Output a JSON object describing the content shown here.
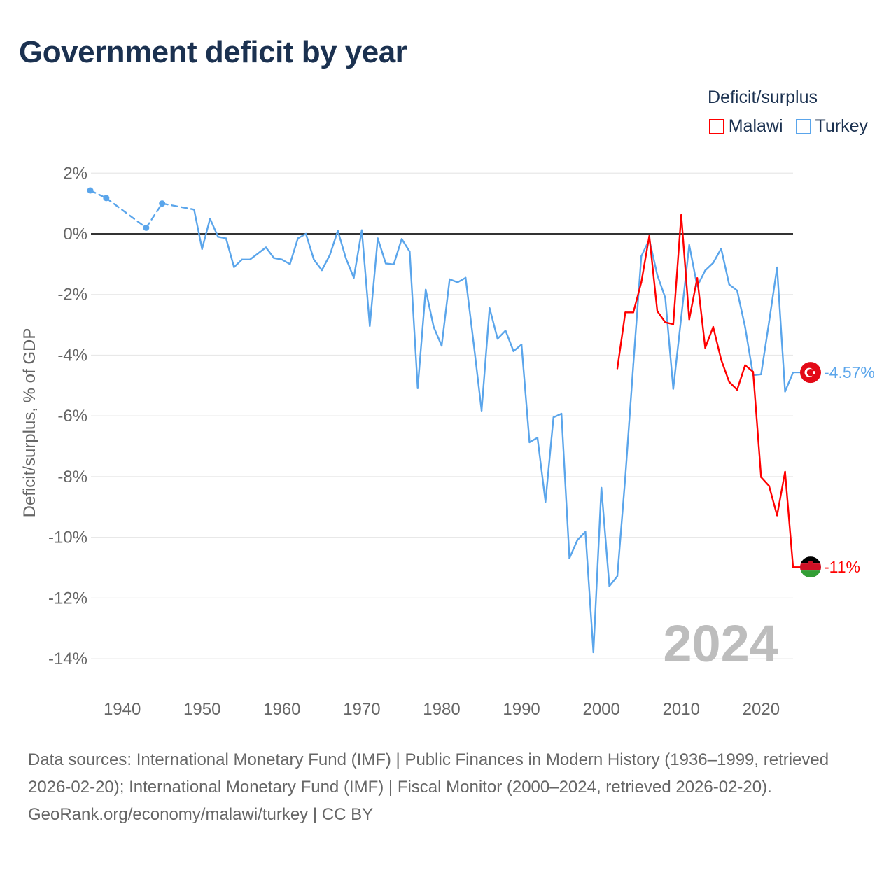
{
  "title": "Government deficit by year",
  "legend": {
    "title": "Deficit/surplus",
    "items": [
      {
        "label": "Malawi",
        "color": "#ff0000"
      },
      {
        "label": "Turkey",
        "color": "#5aa5eb"
      }
    ]
  },
  "footer": {
    "sources": "Data sources: International Monetary Fund (IMF) | Public Finances in Modern History (1936–1999, retrieved 2026-02-20); International Monetary Fund (IMF) | Fiscal Monitor (2000–2024, retrieved 2026-02-20).",
    "credit": "GeoRank.org/economy/malawi/turkey | CC BY"
  },
  "chart_data": {
    "type": "line",
    "title": "Government deficit by year",
    "xlabel": "",
    "ylabel": "Deficit/surplus, % of GDP",
    "xlim": [
      1936,
      2024
    ],
    "ylim": [
      -14,
      2
    ],
    "x_ticks": [
      1940,
      1950,
      1960,
      1970,
      1980,
      1990,
      2000,
      2010,
      2020
    ],
    "x_tick_labels": [
      "1940",
      "1950",
      "1960",
      "1970",
      "1980",
      "1990",
      "2000",
      "2010",
      "2020"
    ],
    "y_ticks": [
      2,
      0,
      -2,
      -4,
      -6,
      -8,
      -10,
      -12,
      -14
    ],
    "y_tick_labels": [
      "2%",
      "0%",
      "-2%",
      "-4%",
      "-6%",
      "-8%",
      "-10%",
      "-12%",
      "-14%"
    ],
    "grid": true,
    "legend_position": "top-right",
    "watermark_year": "2024",
    "series": [
      {
        "name": "Turkey",
        "color": "#5aa5eb",
        "end_label": "-4.57%",
        "flag": "turkey",
        "x": [
          1936,
          1938,
          1943,
          1945,
          1949,
          1950,
          1951,
          1952,
          1953,
          1954,
          1955,
          1956,
          1957,
          1958,
          1959,
          1960,
          1961,
          1962,
          1963,
          1964,
          1965,
          1966,
          1967,
          1968,
          1969,
          1970,
          1971,
          1972,
          1973,
          1974,
          1975,
          1976,
          1977,
          1978,
          1979,
          1980,
          1981,
          1982,
          1983,
          1984,
          1985,
          1986,
          1987,
          1988,
          1989,
          1990,
          1991,
          1992,
          1993,
          1994,
          1995,
          1996,
          1997,
          1998,
          1999,
          2000,
          2001,
          2002,
          2003,
          2004,
          2005,
          2006,
          2007,
          2008,
          2009,
          2010,
          2011,
          2012,
          2013,
          2014,
          2015,
          2016,
          2017,
          2018,
          2019,
          2020,
          2021,
          2022,
          2023,
          2024
        ],
        "y": [
          1.43,
          1.18,
          0.2,
          1.0,
          0.8,
          -0.5,
          0.5,
          -0.1,
          -0.15,
          -1.1,
          -0.85,
          -0.85,
          -0.65,
          -0.45,
          -0.8,
          -0.85,
          -1.0,
          -0.15,
          0.0,
          -0.85,
          -1.2,
          -0.7,
          0.1,
          -0.8,
          -1.45,
          0.12,
          -3.04,
          -0.15,
          -0.98,
          -1.01,
          -0.17,
          -0.59,
          -5.09,
          -1.84,
          -3.07,
          -3.69,
          -1.5,
          -1.6,
          -1.45,
          -3.6,
          -5.83,
          -2.45,
          -3.46,
          -3.19,
          -3.87,
          -3.65,
          -6.87,
          -6.72,
          -8.83,
          -6.05,
          -5.93,
          -10.69,
          -10.09,
          -9.82,
          -13.79,
          -8.37,
          -11.61,
          -11.28,
          -8.0,
          -4.3,
          -0.74,
          -0.19,
          -1.36,
          -2.11,
          -5.11,
          -2.75,
          -0.37,
          -1.73,
          -1.21,
          -0.96,
          -0.49,
          -1.67,
          -1.87,
          -3.08,
          -4.66,
          -4.63,
          -2.9,
          -1.11,
          -5.2,
          -4.57
        ]
      },
      {
        "name": "Malawi",
        "color": "#ff0000",
        "end_label": "-11%",
        "flag": "malawi",
        "x": [
          2002,
          2003,
          2004,
          2005,
          2006,
          2007,
          2008,
          2009,
          2010,
          2011,
          2012,
          2013,
          2014,
          2015,
          2016,
          2017,
          2018,
          2019,
          2020,
          2021,
          2022,
          2023,
          2024
        ],
        "y": [
          -4.44,
          -2.59,
          -2.59,
          -1.6,
          -0.07,
          -2.55,
          -2.92,
          -2.98,
          0.62,
          -2.82,
          -1.46,
          -3.76,
          -3.07,
          -4.15,
          -4.88,
          -5.14,
          -4.33,
          -4.55,
          -8.02,
          -8.31,
          -9.28,
          -7.84,
          -10.98
        ]
      }
    ]
  }
}
